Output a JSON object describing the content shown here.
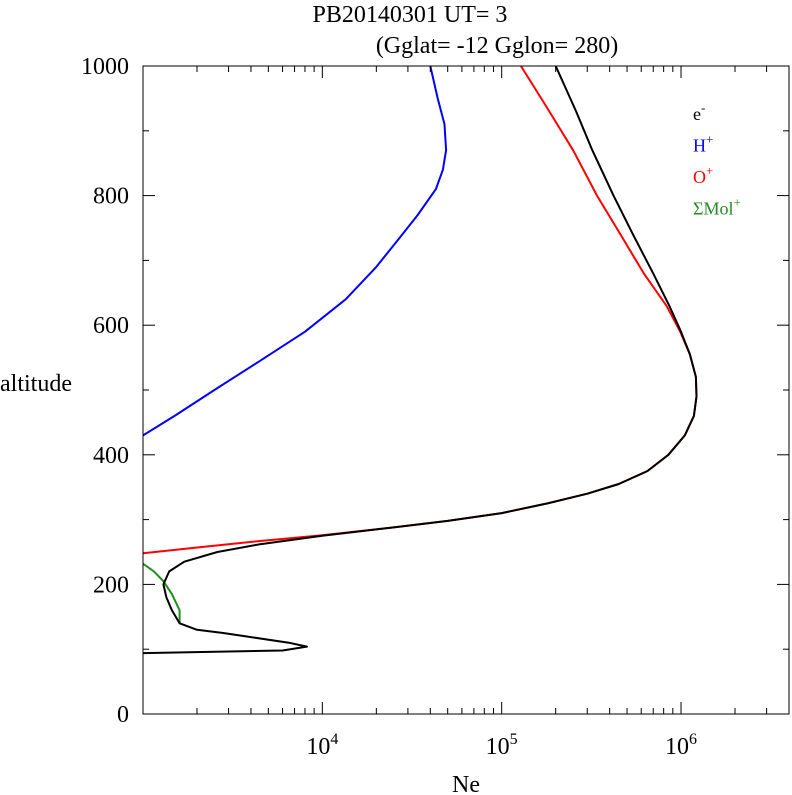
{
  "chart_data": {
    "type": "line",
    "title": "PB20140301   UT=  3",
    "subtitle": "(Gglat= -12   Gglon=  280)",
    "xlabel": "Ne",
    "ylabel": "altitude",
    "x_scale": "log",
    "xlim": [
      1000,
      4000000
    ],
    "ylim": [
      0,
      1000
    ],
    "x_tick_labels": [
      {
        "value": 10000,
        "base": "10",
        "exp": "4"
      },
      {
        "value": 100000,
        "base": "10",
        "exp": "5"
      },
      {
        "value": 1000000,
        "base": "10",
        "exp": "6"
      }
    ],
    "y_tick_labels": [
      "0",
      "200",
      "400",
      "600",
      "800",
      "1000"
    ],
    "y_ticks": [
      0,
      200,
      400,
      600,
      800,
      1000
    ],
    "legend_position": "top-right",
    "grid": false,
    "series": [
      {
        "name": "e",
        "name_sup": "-",
        "color": "#000000",
        "points": [
          [
            1000,
            94
          ],
          [
            6000,
            98
          ],
          [
            8200,
            104
          ],
          [
            6500,
            110
          ],
          [
            2800,
            125
          ],
          [
            2000,
            130
          ],
          [
            1600,
            140
          ],
          [
            1450,
            160
          ],
          [
            1350,
            180
          ],
          [
            1300,
            200
          ],
          [
            1400,
            220
          ],
          [
            1700,
            235
          ],
          [
            2600,
            250
          ],
          [
            4500,
            262
          ],
          [
            10000,
            275
          ],
          [
            25000,
            288
          ],
          [
            50000,
            298
          ],
          [
            100000,
            310
          ],
          [
            180000,
            325
          ],
          [
            300000,
            340
          ],
          [
            450000,
            355
          ],
          [
            650000,
            375
          ],
          [
            850000,
            400
          ],
          [
            1050000,
            430
          ],
          [
            1180000,
            460
          ],
          [
            1220000,
            490
          ],
          [
            1210000,
            520
          ],
          [
            1120000,
            555
          ],
          [
            1000000,
            590
          ],
          [
            860000,
            630
          ],
          [
            700000,
            680
          ],
          [
            540000,
            740
          ],
          [
            420000,
            800
          ],
          [
            320000,
            870
          ],
          [
            260000,
            930
          ],
          [
            200000,
            1000
          ]
        ]
      },
      {
        "name": "H",
        "name_sup": "+",
        "color": "#0000ff",
        "points": [
          [
            1000,
            430
          ],
          [
            1500,
            460
          ],
          [
            2500,
            500
          ],
          [
            4500,
            545
          ],
          [
            8000,
            590
          ],
          [
            13500,
            640
          ],
          [
            20000,
            690
          ],
          [
            27000,
            735
          ],
          [
            34000,
            770
          ],
          [
            43000,
            810
          ],
          [
            47000,
            840
          ],
          [
            49000,
            870
          ],
          [
            48000,
            910
          ],
          [
            44000,
            950
          ],
          [
            40000,
            1000
          ]
        ]
      },
      {
        "name": "O",
        "name_sup": "+",
        "color": "#ff0000",
        "points": [
          [
            1000,
            248
          ],
          [
            2200,
            258
          ],
          [
            4500,
            267
          ],
          [
            10000,
            276
          ],
          [
            25000,
            288
          ],
          [
            50000,
            298
          ],
          [
            100000,
            310
          ],
          [
            180000,
            325
          ],
          [
            300000,
            340
          ],
          [
            450000,
            355
          ],
          [
            650000,
            375
          ],
          [
            850000,
            400
          ],
          [
            1050000,
            430
          ],
          [
            1180000,
            460
          ],
          [
            1220000,
            490
          ],
          [
            1210000,
            520
          ],
          [
            1120000,
            555
          ],
          [
            990000,
            590
          ],
          [
            830000,
            630
          ],
          [
            620000,
            680
          ],
          [
            460000,
            740
          ],
          [
            340000,
            800
          ],
          [
            250000,
            870
          ],
          [
            175000,
            940
          ],
          [
            128000,
            1000
          ]
        ]
      },
      {
        "name": "ΣMol",
        "name_sup": "+",
        "color": "#228b22",
        "points": [
          [
            1000,
            232
          ],
          [
            1150,
            220
          ],
          [
            1300,
            205
          ],
          [
            1450,
            185
          ],
          [
            1600,
            160
          ],
          [
            1600,
            140
          ]
        ]
      }
    ]
  }
}
